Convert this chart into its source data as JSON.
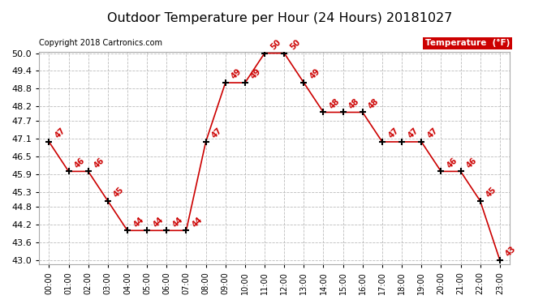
{
  "title": "Outdoor Temperature per Hour (24 Hours) 20181027",
  "copyright": "Copyright 2018 Cartronics.com",
  "legend_label": "Temperature  (°F)",
  "hours": [
    0,
    1,
    2,
    3,
    4,
    5,
    6,
    7,
    8,
    9,
    10,
    11,
    12,
    13,
    14,
    15,
    16,
    17,
    18,
    19,
    20,
    21,
    22,
    23
  ],
  "hour_labels": [
    "00:00",
    "01:00",
    "02:00",
    "03:00",
    "04:00",
    "05:00",
    "06:00",
    "07:00",
    "08:00",
    "09:00",
    "10:00",
    "11:00",
    "12:00",
    "13:00",
    "14:00",
    "15:00",
    "16:00",
    "17:00",
    "18:00",
    "19:00",
    "20:00",
    "21:00",
    "22:00",
    "23:00"
  ],
  "temperatures": [
    47,
    46,
    46,
    45,
    44,
    44,
    44,
    44,
    47,
    49,
    49,
    50,
    50,
    49,
    48,
    48,
    48,
    47,
    47,
    47,
    46,
    46,
    45,
    43
  ],
  "line_color": "#cc0000",
  "marker_color": "#000000",
  "annotation_color": "#cc0000",
  "title_fontsize": 11.5,
  "copyright_fontsize": 7,
  "ytick_fontsize": 8,
  "xtick_fontsize": 7,
  "annotation_fontsize": 7,
  "ylim_min": 43.0,
  "ylim_max": 50.0,
  "ytick_vals": [
    43.0,
    43.6,
    44.2,
    44.8,
    45.3,
    45.9,
    46.5,
    47.1,
    47.7,
    48.2,
    48.8,
    49.4,
    50.0
  ],
  "ytick_labels": [
    "43.0",
    "43.6",
    "44.2",
    "44.8",
    "45.3",
    "45.9",
    "46.5",
    "47.1",
    "47.7",
    "48.2",
    "48.8",
    "49.4",
    "50.0"
  ],
  "background_color": "#ffffff",
  "grid_color": "#bbbbbb",
  "legend_bg_color": "#cc0000",
  "legend_text_color": "#ffffff"
}
